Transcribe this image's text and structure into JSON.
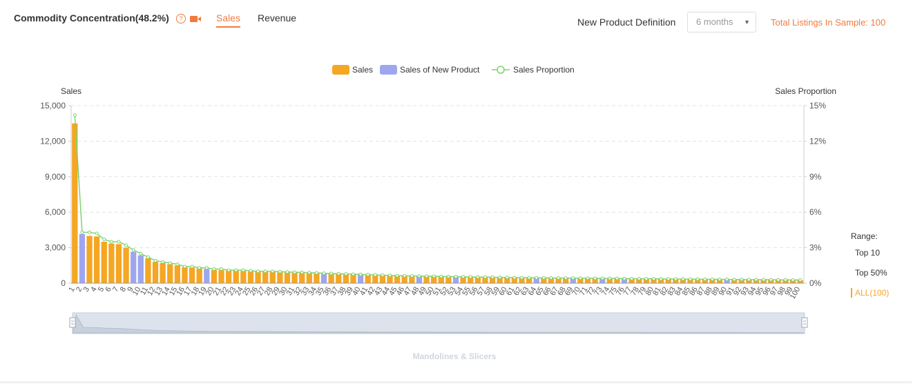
{
  "header": {
    "title": "Commodity Concentration(48.2%)",
    "help_glyph": "?",
    "tabs": [
      {
        "label": "Sales",
        "active": true
      },
      {
        "label": "Revenue",
        "active": false
      }
    ],
    "new_product_label": "New Product Definition",
    "new_product_value": "6 months",
    "total_listings": "Total Listings In Sample: 100"
  },
  "range": {
    "label": "Range:",
    "options": [
      "Top 10",
      "Top 50%",
      "ALL(100)"
    ],
    "selected": "ALL(100)"
  },
  "colors": {
    "sales": "#f5a623",
    "new_product": "#9ea6ef",
    "proportion": "#7ed36f",
    "accent": "#f07b3f"
  },
  "chart_data": {
    "type": "bar",
    "legend": [
      "Sales",
      "Sales of New Product",
      "Sales Proportion"
    ],
    "ylabel_left": "Sales",
    "ylabel_right": "Sales Proportion",
    "left_ticks": [
      "0",
      "3,000",
      "6,000",
      "9,000",
      "12,000",
      "15,000"
    ],
    "right_ticks": [
      "0%",
      "3%",
      "6%",
      "9%",
      "12%",
      "15%"
    ],
    "ylim": [
      0,
      15000
    ],
    "ylim_right": [
      0,
      15
    ],
    "x": [
      1,
      2,
      3,
      4,
      5,
      6,
      7,
      8,
      9,
      10,
      11,
      12,
      13,
      14,
      15,
      16,
      17,
      18,
      19,
      20,
      21,
      22,
      23,
      24,
      25,
      26,
      27,
      28,
      29,
      30,
      31,
      32,
      33,
      34,
      35,
      36,
      37,
      38,
      39,
      40,
      41,
      42,
      43,
      44,
      45,
      46,
      47,
      48,
      49,
      50,
      51,
      52,
      53,
      54,
      55,
      56,
      57,
      58,
      59,
      60,
      61,
      62,
      63,
      64,
      65,
      66,
      67,
      68,
      69,
      70,
      71,
      72,
      73,
      74,
      75,
      76,
      77,
      78,
      79,
      80,
      81,
      82,
      83,
      84,
      85,
      86,
      87,
      88,
      89,
      90,
      91,
      92,
      93,
      94,
      95,
      96,
      97,
      98,
      99,
      100
    ],
    "sales": [
      13500,
      4150,
      4000,
      3950,
      3500,
      3350,
      3300,
      3000,
      2650,
      2350,
      2100,
      1800,
      1700,
      1600,
      1500,
      1350,
      1300,
      1250,
      1200,
      1120,
      1100,
      1080,
      1050,
      1030,
      1000,
      980,
      960,
      940,
      920,
      900,
      880,
      860,
      840,
      820,
      800,
      780,
      760,
      740,
      720,
      700,
      680,
      660,
      640,
      620,
      600,
      590,
      580,
      570,
      560,
      550,
      540,
      530,
      520,
      510,
      500,
      490,
      480,
      470,
      460,
      450,
      445,
      440,
      435,
      430,
      425,
      420,
      415,
      410,
      405,
      400,
      395,
      390,
      385,
      380,
      375,
      370,
      365,
      360,
      355,
      350,
      345,
      340,
      335,
      330,
      325,
      320,
      315,
      310,
      305,
      300,
      295,
      290,
      285,
      280,
      275,
      270,
      265,
      260,
      255,
      250
    ],
    "is_new_product": [
      false,
      true,
      false,
      false,
      false,
      false,
      false,
      false,
      true,
      true,
      false,
      false,
      false,
      false,
      false,
      false,
      false,
      false,
      true,
      false,
      false,
      false,
      false,
      false,
      false,
      false,
      false,
      false,
      false,
      false,
      false,
      false,
      false,
      false,
      true,
      false,
      false,
      false,
      false,
      true,
      false,
      false,
      false,
      false,
      false,
      false,
      false,
      true,
      false,
      false,
      false,
      false,
      true,
      false,
      false,
      false,
      false,
      false,
      false,
      false,
      false,
      false,
      false,
      true,
      false,
      false,
      false,
      false,
      true,
      false,
      false,
      false,
      true,
      false,
      false,
      true,
      false,
      false,
      false,
      false,
      false,
      false,
      false,
      false,
      false,
      false,
      false,
      false,
      false,
      true,
      false,
      false,
      false,
      false,
      false,
      false,
      false,
      false,
      false,
      false
    ],
    "proportion": [
      14.2,
      4.3,
      4.3,
      4.2,
      3.7,
      3.5,
      3.5,
      3.2,
      2.8,
      2.5,
      2.2,
      1.9,
      1.8,
      1.7,
      1.6,
      1.4,
      1.4,
      1.3,
      1.3,
      1.2,
      1.2,
      1.1,
      1.1,
      1.1,
      1.05,
      1.0,
      1.0,
      1.0,
      0.97,
      0.95,
      0.93,
      0.91,
      0.89,
      0.87,
      0.84,
      0.82,
      0.8,
      0.78,
      0.76,
      0.74,
      0.72,
      0.7,
      0.68,
      0.66,
      0.64,
      0.62,
      0.61,
      0.6,
      0.59,
      0.58,
      0.57,
      0.56,
      0.55,
      0.54,
      0.53,
      0.52,
      0.51,
      0.5,
      0.49,
      0.48,
      0.47,
      0.46,
      0.46,
      0.45,
      0.45,
      0.44,
      0.44,
      0.43,
      0.43,
      0.42,
      0.42,
      0.41,
      0.41,
      0.4,
      0.4,
      0.39,
      0.38,
      0.38,
      0.37,
      0.37,
      0.36,
      0.36,
      0.35,
      0.35,
      0.34,
      0.34,
      0.33,
      0.33,
      0.32,
      0.32,
      0.31,
      0.31,
      0.3,
      0.3,
      0.29,
      0.29,
      0.28,
      0.28,
      0.27,
      0.27
    ],
    "zoom_caption": "Mandolines & Slicers",
    "grid": true,
    "legend_position": "top-center"
  }
}
